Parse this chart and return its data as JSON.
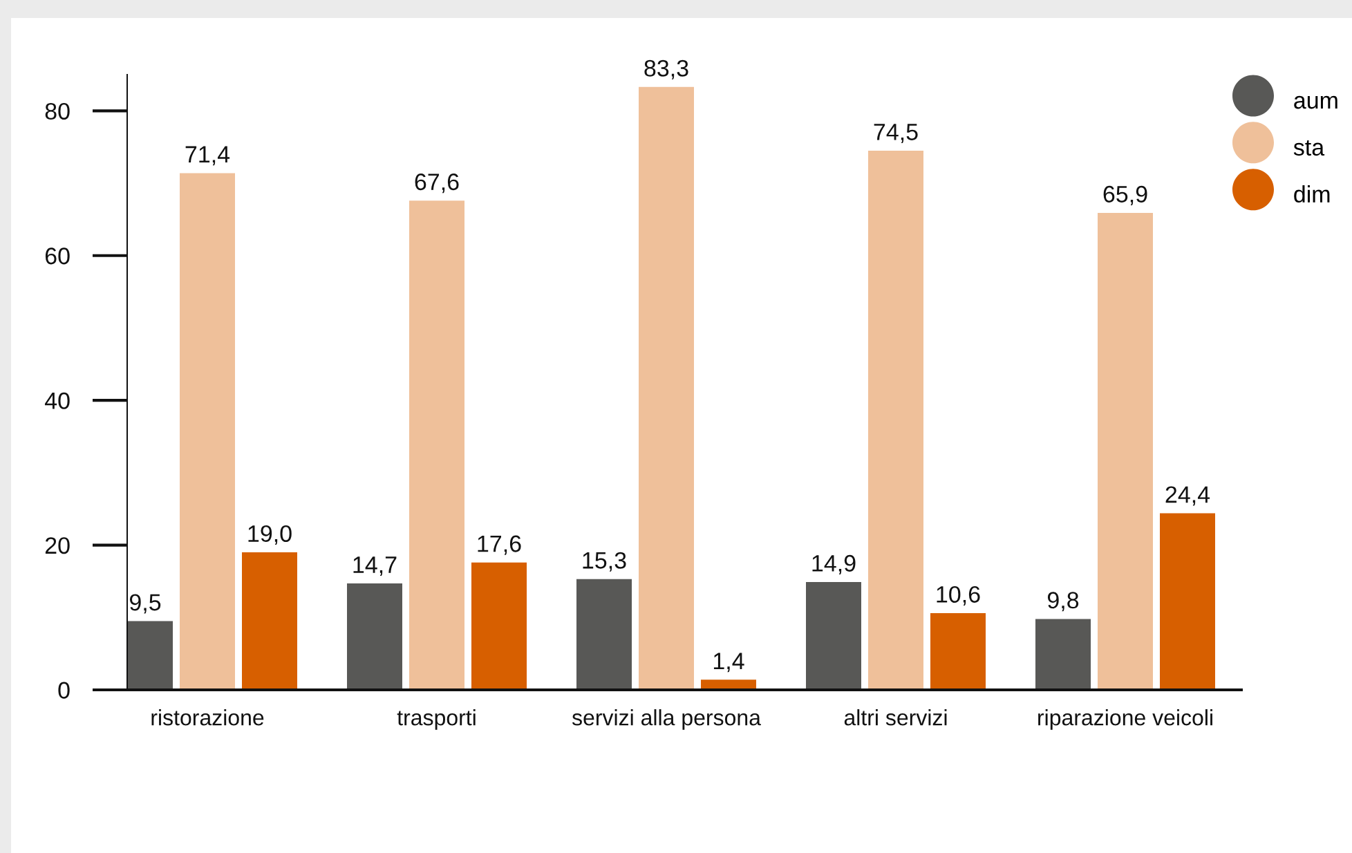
{
  "chart_data": {
    "type": "bar",
    "categories": [
      "ristorazione",
      "trasporti",
      "servizi alla persona",
      "altri servizi",
      "riparazione veicoli"
    ],
    "series": [
      {
        "name": "aum",
        "color": "#585856",
        "values": [
          9.5,
          14.7,
          15.3,
          14.9,
          9.8
        ],
        "value_labels": [
          "9,5",
          "14,7",
          "15,3",
          "14,9",
          "9,8"
        ]
      },
      {
        "name": "sta",
        "color": "#efc09a",
        "values": [
          71.4,
          67.6,
          83.3,
          74.5,
          65.9
        ],
        "value_labels": [
          "71,4",
          "67,6",
          "83,3",
          "74,5",
          "65,9"
        ]
      },
      {
        "name": "dim",
        "color": "#d75f00",
        "values": [
          19.0,
          17.6,
          1.4,
          10.6,
          24.4
        ],
        "value_labels": [
          "19,0",
          "17,6",
          "1,4",
          "10,6",
          "24,4"
        ]
      }
    ],
    "ylim": [
      0,
      85
    ],
    "yticks": [
      0,
      20,
      40,
      60,
      80
    ],
    "legend": "top right"
  }
}
